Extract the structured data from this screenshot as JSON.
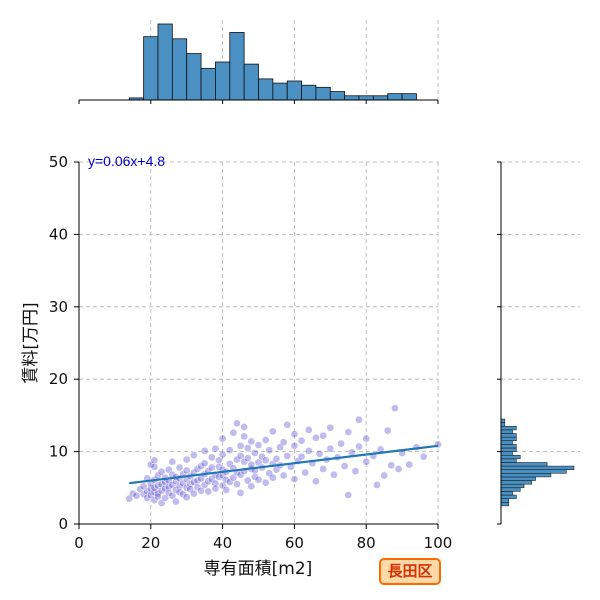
{
  "badge": "長田区",
  "chart_data": {
    "type": "scatter",
    "title": "",
    "xlabel": "専有面積[m2]",
    "ylabel": "賃料[万円]",
    "xlim": [
      0,
      100
    ],
    "ylim": [
      0,
      50
    ],
    "xticks": [
      0,
      20,
      40,
      60,
      80,
      100
    ],
    "yticks": [
      0,
      10,
      20,
      30,
      40,
      50
    ],
    "grid": true,
    "regression": {
      "label": "y=0.06x+4.8",
      "slope": 0.06,
      "intercept": 4.8,
      "x_range": [
        14,
        100
      ]
    },
    "colors": {
      "points": "#3a2fc8",
      "line": "#1f77b4",
      "hist": "#4a90c2",
      "equation": "#0000cc"
    },
    "points": [
      [
        14,
        3.5
      ],
      [
        15,
        4.2
      ],
      [
        16,
        3.9
      ],
      [
        17,
        4.8
      ],
      [
        18,
        4.1
      ],
      [
        18,
        5.2
      ],
      [
        19,
        3.6
      ],
      [
        19,
        4.5
      ],
      [
        19,
        6.3
      ],
      [
        20,
        4.0
      ],
      [
        20,
        4.9
      ],
      [
        20,
        5.6
      ],
      [
        20,
        8.2
      ],
      [
        21,
        3.3
      ],
      [
        21,
        4.4
      ],
      [
        21,
        5.0
      ],
      [
        21,
        6.1
      ],
      [
        21,
        7.9
      ],
      [
        21,
        8.8
      ],
      [
        22,
        4.2
      ],
      [
        22,
        5.3
      ],
      [
        22,
        6.7
      ],
      [
        22,
        3.8
      ],
      [
        23,
        4.6
      ],
      [
        23,
        5.5
      ],
      [
        23,
        7.2
      ],
      [
        23,
        2.9
      ],
      [
        24,
        4.9
      ],
      [
        24,
        5.8
      ],
      [
        24,
        6.4
      ],
      [
        24,
        3.6
      ],
      [
        25,
        5.1
      ],
      [
        25,
        6.0
      ],
      [
        25,
        7.5
      ],
      [
        25,
        4.3
      ],
      [
        26,
        5.4
      ],
      [
        26,
        6.8
      ],
      [
        26,
        3.9
      ],
      [
        26,
        8.6
      ],
      [
        27,
        4.7
      ],
      [
        27,
        5.9
      ],
      [
        27,
        6.5
      ],
      [
        27,
        3.1
      ],
      [
        28,
        5.2
      ],
      [
        28,
        6.3
      ],
      [
        28,
        7.8
      ],
      [
        28,
        4.4
      ],
      [
        29,
        5.6
      ],
      [
        29,
        6.9
      ],
      [
        29,
        4.1
      ],
      [
        30,
        5.0
      ],
      [
        30,
        6.2
      ],
      [
        30,
        7.4
      ],
      [
        30,
        8.9
      ],
      [
        30,
        3.7
      ],
      [
        31,
        5.5
      ],
      [
        31,
        6.6
      ],
      [
        31,
        4.8
      ],
      [
        32,
        5.8
      ],
      [
        32,
        7.1
      ],
      [
        32,
        4.2
      ],
      [
        32,
        9.5
      ],
      [
        33,
        6.0
      ],
      [
        33,
        7.6
      ],
      [
        33,
        5.1
      ],
      [
        34,
        6.3
      ],
      [
        34,
        8.0
      ],
      [
        34,
        4.6
      ],
      [
        35,
        5.4
      ],
      [
        35,
        6.9
      ],
      [
        35,
        8.4
      ],
      [
        35,
        10.1
      ],
      [
        36,
        5.9
      ],
      [
        36,
        7.3
      ],
      [
        36,
        4.5
      ],
      [
        37,
        6.2
      ],
      [
        37,
        7.8
      ],
      [
        37,
        9.2
      ],
      [
        38,
        5.6
      ],
      [
        38,
        6.8
      ],
      [
        38,
        10.4
      ],
      [
        38,
        4.9
      ],
      [
        39,
        6.5
      ],
      [
        39,
        7.9
      ],
      [
        39,
        8.8
      ],
      [
        40,
        5.3
      ],
      [
        40,
        6.7
      ],
      [
        40,
        7.5
      ],
      [
        40,
        9.6
      ],
      [
        40,
        11.8
      ],
      [
        41,
        6.1
      ],
      [
        41,
        7.2
      ],
      [
        41,
        4.7
      ],
      [
        42,
        5.8
      ],
      [
        42,
        8.3
      ],
      [
        42,
        10.2
      ],
      [
        43,
        6.4
      ],
      [
        43,
        7.7
      ],
      [
        43,
        12.6
      ],
      [
        44,
        5.5
      ],
      [
        44,
        8.9
      ],
      [
        44,
        7.1
      ],
      [
        44,
        13.9
      ],
      [
        45,
        6.8
      ],
      [
        45,
        9.4
      ],
      [
        45,
        10.8
      ],
      [
        45,
        4.3
      ],
      [
        46,
        7.3
      ],
      [
        46,
        8.6
      ],
      [
        46,
        12.1
      ],
      [
        46,
        13.4
      ],
      [
        47,
        6.0
      ],
      [
        47,
        9.1
      ],
      [
        47,
        10.5
      ],
      [
        48,
        7.6
      ],
      [
        48,
        8.2
      ],
      [
        48,
        11.4
      ],
      [
        48,
        5.2
      ],
      [
        49,
        6.5
      ],
      [
        49,
        9.8
      ],
      [
        49,
        7.4
      ],
      [
        50,
        8.5
      ],
      [
        50,
        10.9
      ],
      [
        50,
        6.1
      ],
      [
        51,
        7.8
      ],
      [
        51,
        9.3
      ],
      [
        52,
        8.8
      ],
      [
        52,
        11.6
      ],
      [
        52,
        5.7
      ],
      [
        53,
        7.0
      ],
      [
        53,
        10.2
      ],
      [
        54,
        8.3
      ],
      [
        54,
        12.8
      ],
      [
        54,
        6.4
      ],
      [
        55,
        9.0
      ],
      [
        55,
        7.5
      ],
      [
        56,
        10.6
      ],
      [
        56,
        8.1
      ],
      [
        57,
        11.3
      ],
      [
        57,
        6.7
      ],
      [
        58,
        9.4
      ],
      [
        58,
        13.7
      ],
      [
        59,
        7.9
      ],
      [
        60,
        10.8
      ],
      [
        60,
        12.4
      ],
      [
        60,
        6.2
      ],
      [
        61,
        8.7
      ],
      [
        62,
        11.5
      ],
      [
        62,
        9.3
      ],
      [
        63,
        7.1
      ],
      [
        64,
        10.1
      ],
      [
        64,
        13.0
      ],
      [
        65,
        8.4
      ],
      [
        66,
        11.9
      ],
      [
        66,
        5.9
      ],
      [
        67,
        9.7
      ],
      [
        68,
        12.2
      ],
      [
        68,
        7.6
      ],
      [
        69,
        8.9
      ],
      [
        70,
        10.4
      ],
      [
        70,
        13.3
      ],
      [
        71,
        6.8
      ],
      [
        72,
        9.2
      ],
      [
        73,
        11.1
      ],
      [
        74,
        8.0
      ],
      [
        75,
        12.7
      ],
      [
        75,
        4.0
      ],
      [
        76,
        9.9
      ],
      [
        77,
        7.3
      ],
      [
        78,
        14.4
      ],
      [
        78,
        10.7
      ],
      [
        80,
        8.6
      ],
      [
        80,
        11.8
      ],
      [
        82,
        9.4
      ],
      [
        83,
        5.4
      ],
      [
        84,
        10.3
      ],
      [
        85,
        6.7
      ],
      [
        86,
        12.9
      ],
      [
        87,
        8.1
      ],
      [
        88,
        16.0
      ],
      [
        89,
        7.6
      ],
      [
        90,
        9.8
      ],
      [
        92,
        8.2
      ],
      [
        94,
        10.6
      ],
      [
        96,
        9.3
      ],
      [
        100,
        11.0
      ]
    ],
    "hist_x": {
      "bins": [
        [
          14,
          18,
          1
        ],
        [
          18,
          22,
          30
        ],
        [
          22,
          26,
          36
        ],
        [
          26,
          30,
          29
        ],
        [
          30,
          34,
          22
        ],
        [
          34,
          38,
          15
        ],
        [
          38,
          42,
          18
        ],
        [
          42,
          46,
          32
        ],
        [
          46,
          50,
          17
        ],
        [
          50,
          54,
          10
        ],
        [
          54,
          58,
          8
        ],
        [
          58,
          62,
          9
        ],
        [
          62,
          66,
          7
        ],
        [
          66,
          70,
          6
        ],
        [
          70,
          74,
          4
        ],
        [
          74,
          78,
          2
        ],
        [
          78,
          82,
          2
        ],
        [
          82,
          86,
          2
        ],
        [
          86,
          90,
          3
        ],
        [
          90,
          94,
          3
        ]
      ]
    },
    "hist_y": {
      "bins": [
        [
          2.5,
          3.0,
          2
        ],
        [
          3.0,
          3.5,
          2
        ],
        [
          3.5,
          4.0,
          4
        ],
        [
          4.0,
          4.5,
          3
        ],
        [
          4.5,
          5.0,
          5
        ],
        [
          5.0,
          5.5,
          6
        ],
        [
          5.5,
          6.0,
          8
        ],
        [
          6.0,
          6.5,
          9
        ],
        [
          6.5,
          7.0,
          13
        ],
        [
          7.0,
          7.5,
          17
        ],
        [
          7.5,
          8.0,
          19
        ],
        [
          8.0,
          8.5,
          12
        ],
        [
          8.5,
          9.0,
          4
        ],
        [
          9.0,
          9.5,
          5
        ],
        [
          9.5,
          10.0,
          3
        ],
        [
          10.0,
          10.5,
          4
        ],
        [
          10.5,
          11.0,
          4
        ],
        [
          11.0,
          11.5,
          3
        ],
        [
          11.5,
          12.0,
          4
        ],
        [
          12.0,
          12.5,
          4
        ],
        [
          12.5,
          13.0,
          3
        ],
        [
          13.0,
          13.5,
          4
        ],
        [
          13.5,
          14.0,
          1
        ],
        [
          14.0,
          14.5,
          1
        ]
      ]
    }
  }
}
